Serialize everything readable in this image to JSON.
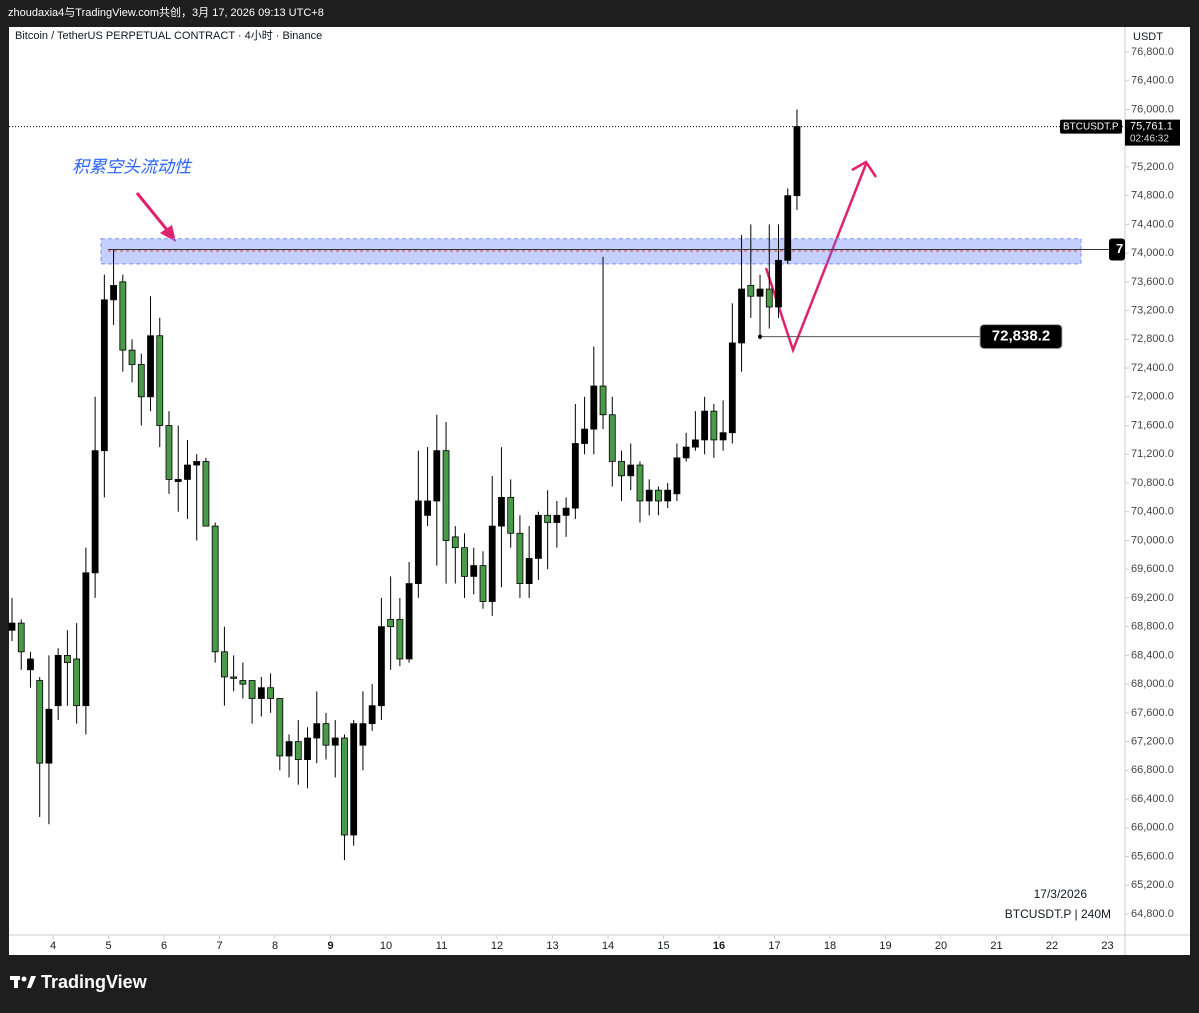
{
  "header": {
    "text": "zhoudaxia4与TradingView.com共创，3月 17, 2026 09:13 UTC+8"
  },
  "footer": {
    "brand": "TradingView"
  },
  "chart_data": {
    "type": "candlestick",
    "title": "Bitcoin / TetherUS PERPETUAL CONTRACT · 4小时 · Binance",
    "currency": "USDT",
    "annotation": "积累空头流动性",
    "date_label": "17/3/2026",
    "symbol_label": "BTCUSDT.P | 240M",
    "up_color": "#000000",
    "down_color": "#4a9a4a",
    "ylim": [
      64800,
      76800
    ],
    "yticks": [
      {
        "value": 64800,
        "label": "64,800.0"
      },
      {
        "value": 65200,
        "label": "65,200.0"
      },
      {
        "value": 65600,
        "label": "65,600.0"
      },
      {
        "value": 66000,
        "label": "66,000.0"
      },
      {
        "value": 66400,
        "label": "66,400.0"
      },
      {
        "value": 66800,
        "label": "66,800.0"
      },
      {
        "value": 67200,
        "label": "67,200.0"
      },
      {
        "value": 67600,
        "label": "67,600.0"
      },
      {
        "value": 68000,
        "label": "68,000.0"
      },
      {
        "value": 68400,
        "label": "68,400.0"
      },
      {
        "value": 68800,
        "label": "68,800.0"
      },
      {
        "value": 69200,
        "label": "69,200.0"
      },
      {
        "value": 69600,
        "label": "69,600.0"
      },
      {
        "value": 70000,
        "label": "70,000.0"
      },
      {
        "value": 70400,
        "label": "70,400.0"
      },
      {
        "value": 70800,
        "label": "70,800.0"
      },
      {
        "value": 71200,
        "label": "71,200.0"
      },
      {
        "value": 71600,
        "label": "71,600.0"
      },
      {
        "value": 72000,
        "label": "72,000.0"
      },
      {
        "value": 72400,
        "label": "72,400.0"
      },
      {
        "value": 72800,
        "label": "72,800.0"
      },
      {
        "value": 73200,
        "label": "73,200.0"
      },
      {
        "value": 73600,
        "label": "73,600.0"
      },
      {
        "value": 74000,
        "label": "74,000.0"
      },
      {
        "value": 74400,
        "label": "74,400.0"
      },
      {
        "value": 74800,
        "label": "74,800.0"
      },
      {
        "value": 75200,
        "label": "75,200.0"
      },
      {
        "value": 75600,
        "label": "75,600.0"
      },
      {
        "value": 76000,
        "label": "76,000.0"
      },
      {
        "value": 76400,
        "label": "76,400.0"
      },
      {
        "value": 76800,
        "label": "76,800.0"
      }
    ],
    "xticks": [
      4,
      5,
      6,
      7,
      8,
      9,
      10,
      11,
      12,
      13,
      14,
      15,
      16,
      17,
      18,
      19,
      20,
      21,
      22,
      23
    ],
    "ohlc": [
      [
        68750,
        69200,
        68600,
        68850
      ],
      [
        68850,
        68900,
        68200,
        68450
      ],
      [
        68200,
        68450,
        67950,
        68350
      ],
      [
        68050,
        68100,
        66150,
        66900
      ],
      [
        66900,
        68400,
        66050,
        67650
      ],
      [
        67700,
        68500,
        67500,
        68400
      ],
      [
        68400,
        68750,
        67700,
        68300
      ],
      [
        68350,
        68850,
        67450,
        67700
      ],
      [
        67700,
        69900,
        67300,
        69550
      ],
      [
        69550,
        72000,
        69200,
        71250
      ],
      [
        71250,
        73700,
        70600,
        73350
      ],
      [
        73350,
        74050,
        73000,
        73550
      ],
      [
        73600,
        73700,
        72350,
        72650
      ],
      [
        72650,
        72800,
        72200,
        72450
      ],
      [
        72450,
        72600,
        71600,
        72000
      ],
      [
        72000,
        73400,
        71800,
        72850
      ],
      [
        72850,
        73100,
        71300,
        71600
      ],
      [
        71600,
        71800,
        70650,
        70850
      ],
      [
        70820,
        71600,
        70400,
        70850
      ],
      [
        70850,
        71400,
        70300,
        71050
      ],
      [
        71050,
        71200,
        70000,
        71100
      ],
      [
        71100,
        71150,
        70200,
        70200
      ],
      [
        70200,
        70250,
        68300,
        68450
      ],
      [
        68450,
        68800,
        67700,
        68100
      ],
      [
        68100,
        68400,
        67900,
        68080
      ],
      [
        68050,
        68300,
        67800,
        68000
      ],
      [
        68050,
        68050,
        67450,
        67800
      ],
      [
        67800,
        68100,
        67550,
        67950
      ],
      [
        67950,
        68150,
        67600,
        67800
      ],
      [
        67800,
        67800,
        66800,
        67000
      ],
      [
        67000,
        67300,
        66700,
        67200
      ],
      [
        67200,
        67500,
        66600,
        66950
      ],
      [
        66950,
        67400,
        66550,
        67250
      ],
      [
        67250,
        67900,
        66900,
        67450
      ],
      [
        67450,
        67600,
        66950,
        67150
      ],
      [
        67150,
        67500,
        66700,
        67250
      ],
      [
        67250,
        67300,
        65550,
        65900
      ],
      [
        65900,
        67500,
        65750,
        67450
      ],
      [
        67150,
        67900,
        66800,
        67450
      ],
      [
        67450,
        68000,
        67350,
        67700
      ],
      [
        67700,
        69200,
        67500,
        68800
      ],
      [
        68900,
        69500,
        68200,
        68800
      ],
      [
        68900,
        69200,
        68250,
        68350
      ],
      [
        68350,
        69700,
        68300,
        69400
      ],
      [
        69400,
        71250,
        69200,
        70550
      ],
      [
        70350,
        71300,
        70200,
        70550
      ],
      [
        70550,
        71750,
        69650,
        71250
      ],
      [
        71250,
        71650,
        69400,
        70000
      ],
      [
        70050,
        70200,
        69400,
        69900
      ],
      [
        69900,
        70100,
        69200,
        69500
      ],
      [
        69500,
        69900,
        69250,
        69650
      ],
      [
        69650,
        69850,
        69050,
        69150
      ],
      [
        69150,
        70900,
        68950,
        70200
      ],
      [
        70200,
        71300,
        69350,
        70600
      ],
      [
        70600,
        70850,
        69900,
        70100
      ],
      [
        70100,
        70350,
        69200,
        69400
      ],
      [
        69400,
        70200,
        69200,
        69750
      ],
      [
        69750,
        70400,
        69450,
        70350
      ],
      [
        70350,
        70700,
        69600,
        70250
      ],
      [
        70250,
        70550,
        69900,
        70350
      ],
      [
        70350,
        70600,
        70050,
        70450
      ],
      [
        70450,
        71900,
        70300,
        71350
      ],
      [
        71350,
        72000,
        71200,
        71550
      ],
      [
        71550,
        72700,
        71200,
        72150
      ],
      [
        72150,
        73950,
        71550,
        71750
      ],
      [
        71750,
        72000,
        70750,
        71100
      ],
      [
        71100,
        71250,
        70550,
        70900
      ],
      [
        70900,
        71350,
        70700,
        71050
      ],
      [
        71050,
        71100,
        70250,
        70550
      ],
      [
        70550,
        70850,
        70350,
        70700
      ],
      [
        70700,
        70750,
        70350,
        70550
      ],
      [
        70550,
        70800,
        70450,
        70700
      ],
      [
        70650,
        71350,
        70550,
        71150
      ],
      [
        71150,
        71500,
        71100,
        71300
      ],
      [
        71300,
        71800,
        71250,
        71400
      ],
      [
        71400,
        72000,
        71200,
        71800
      ],
      [
        71800,
        71900,
        71150,
        71400
      ],
      [
        71400,
        71950,
        71250,
        71500
      ],
      [
        71500,
        73300,
        71350,
        72750
      ],
      [
        72750,
        74250,
        72350,
        73500
      ],
      [
        73550,
        74400,
        73100,
        73400
      ],
      [
        73400,
        73700,
        72800,
        73500
      ],
      [
        73500,
        74400,
        72950,
        73250
      ],
      [
        73250,
        74400,
        73100,
        73900
      ],
      [
        73900,
        74900,
        73850,
        74800
      ],
      [
        74800,
        76000,
        74600,
        75761.1
      ]
    ],
    "last_price": {
      "value": 75761.1,
      "label": "75,761.1",
      "symbol": "BTCUSDT.P",
      "countdown": "02:46:32"
    },
    "zone": [
      73850,
      74200
    ],
    "zone_line": 74050,
    "zone_label": "7",
    "level": {
      "value": 72838.2,
      "label": "72,838.2"
    }
  }
}
